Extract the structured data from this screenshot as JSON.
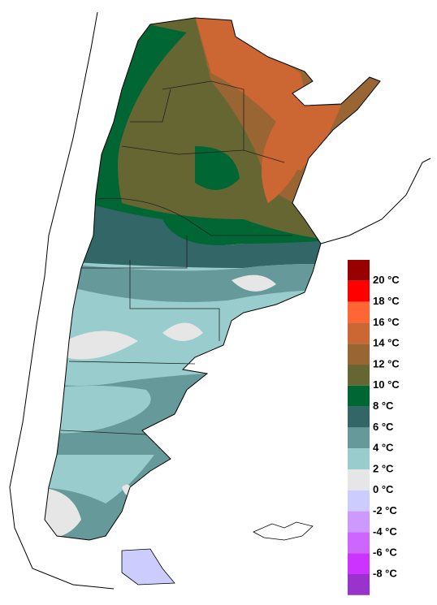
{
  "legend": {
    "labels": [
      "20 °C",
      "18 °C",
      "16 °C",
      "14 °C",
      "12 °C",
      "10 °C",
      "8 °C",
      "6 °C",
      "4 °C",
      "2 °C",
      "0 °C",
      "-2 °C",
      "-4 °C",
      "-6 °C",
      "-8 °C"
    ],
    "colors": [
      "#990000",
      "#ff0000",
      "#ff6633",
      "#cc6633",
      "#996633",
      "#666633",
      "#006633",
      "#336666",
      "#669999",
      "#99cccc",
      "#e6e6e6",
      "#ccccff",
      "#cc99ff",
      "#cc66ff",
      "#cc33ff",
      "#9933cc"
    ]
  }
}
